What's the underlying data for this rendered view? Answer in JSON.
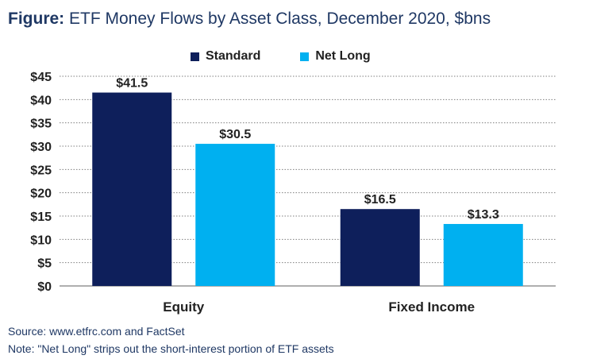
{
  "title": {
    "prefix": "Figure:",
    "text": "ETF Money Flows by Asset Class, December 2020, $bns"
  },
  "footnotes": {
    "source": "Source: www.etfrc.com and FactSet",
    "note": "Note: \"Net Long\" strips out the short-interest portion of ETF assets"
  },
  "chart_data": {
    "type": "bar",
    "title": "ETF Money Flows by Asset Class, December 2020, $bns",
    "xlabel": "",
    "ylabel": "",
    "categories": [
      "Equity",
      "Fixed Income"
    ],
    "series": [
      {
        "name": "Standard",
        "values": [
          41.5,
          16.5
        ],
        "labels": [
          "$41.5",
          "$16.5"
        ],
        "color": "#0e1f5b"
      },
      {
        "name": "Net Long",
        "values": [
          30.5,
          13.3
        ],
        "labels": [
          "$30.5",
          "$13.3"
        ],
        "color": "#00b0f0"
      }
    ],
    "ylim": [
      0,
      45
    ],
    "yticks": [
      0,
      5,
      10,
      15,
      20,
      25,
      30,
      35,
      40,
      45
    ],
    "ytick_labels": [
      "$0",
      "$5",
      "$10",
      "$15",
      "$20",
      "$25",
      "$30",
      "$35",
      "$40",
      "$45"
    ],
    "grid": true,
    "legend_position": "top"
  }
}
